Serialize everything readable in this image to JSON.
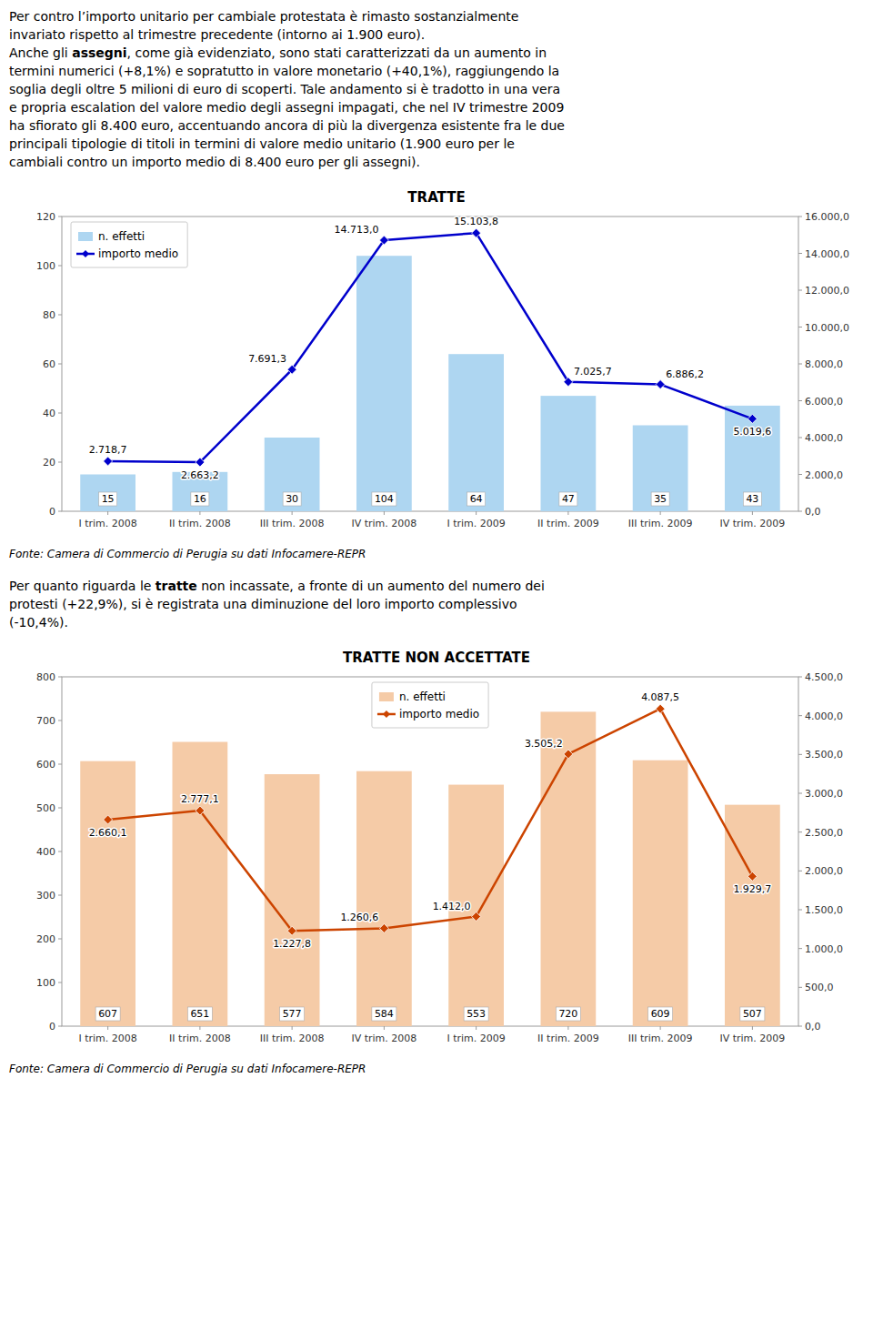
{
  "chart_data": [
    {
      "type": "bar",
      "title": "TRATTE",
      "categories": [
        "I trim. 2008",
        "II trim. 2008",
        "III trim. 2008",
        "IV trim. 2008",
        "I trim. 2009",
        "II trim. 2009",
        "III trim. 2009",
        "IV trim. 2009"
      ],
      "series": [
        {
          "name": "n. effetti",
          "type": "bar",
          "color": "#aed6f1",
          "data_labels": true,
          "values": [
            15,
            16,
            30,
            104,
            64,
            47,
            35,
            43
          ]
        },
        {
          "name": "importo medio",
          "type": "line",
          "axis": "y2",
          "color": "#0000cc",
          "marker": "diamond",
          "data_labels": true,
          "values": [
            2718.7,
            2663.2,
            7691.3,
            14713.0,
            15103.8,
            7025.7,
            6886.2,
            5019.6
          ],
          "value_labels": [
            "2.718,7",
            "2.663,2",
            "7.691,3",
            "14.713,0",
            "15.103,8",
            "7.025,7",
            "6.886,2",
            "5.019,6"
          ]
        }
      ],
      "ylim": [
        0,
        120
      ],
      "yticks": [
        0,
        20,
        40,
        60,
        80,
        100,
        120
      ],
      "y2lim": [
        0,
        16000
      ],
      "y2ticks": [
        {
          "value": 0,
          "label": "0,0"
        },
        {
          "value": 2000,
          "label": "2.000,0"
        },
        {
          "value": 4000,
          "label": "4.000,0"
        },
        {
          "value": 6000,
          "label": "6.000,0"
        },
        {
          "value": 8000,
          "label": "8.000,0"
        },
        {
          "value": 10000,
          "label": "10.000,0"
        },
        {
          "value": 12000,
          "label": "12.000,0"
        },
        {
          "value": 14000,
          "label": "14.000,0"
        },
        {
          "value": 16000,
          "label": "16.000,0"
        }
      ],
      "grid": false,
      "legend": "upper left",
      "source": "Fonte: Camera di Commercio di Perugia su dati Infocamere-REPR"
    },
    {
      "type": "bar",
      "title": "TRATTE NON ACCETTATE",
      "categories": [
        "I trim. 2008",
        "II trim. 2008",
        "III trim. 2008",
        "IV trim. 2008",
        "I trim. 2009",
        "II trim. 2009",
        "III trim. 2009",
        "IV trim. 2009"
      ],
      "series": [
        {
          "name": "n. effetti",
          "type": "bar",
          "color": "#f5cba7",
          "data_labels": true,
          "values": [
            607,
            651,
            577,
            584,
            553,
            720,
            609,
            507
          ]
        },
        {
          "name": "importo medio",
          "type": "line",
          "axis": "y2",
          "color": "#cc4400",
          "marker": "diamond",
          "data_labels": true,
          "values": [
            2660.1,
            2777.1,
            1227.8,
            1260.6,
            1412.0,
            3505.2,
            4087.5,
            1929.7
          ],
          "value_labels": [
            "2.660,1",
            "2.777,1",
            "1.227,8",
            "1.260,6",
            "1.412,0",
            "3.505,2",
            "4.087,5",
            "1.929,7"
          ]
        }
      ],
      "ylim": [
        0,
        800
      ],
      "yticks": [
        0,
        100,
        200,
        300,
        400,
        500,
        600,
        700,
        800
      ],
      "y2lim": [
        0,
        4500
      ],
      "y2ticks": [
        {
          "value": 0,
          "label": "0,0"
        },
        {
          "value": 500,
          "label": "500,0"
        },
        {
          "value": 1000,
          "label": "1.000,0"
        },
        {
          "value": 1500,
          "label": "1.500,0"
        },
        {
          "value": 2000,
          "label": "2.000,0"
        },
        {
          "value": 2500,
          "label": "2.500,0"
        },
        {
          "value": 3000,
          "label": "3.000,0"
        },
        {
          "value": 3500,
          "label": "3.500,0"
        },
        {
          "value": 4000,
          "label": "4.000,0"
        },
        {
          "value": 4500,
          "label": "4.500,0"
        }
      ],
      "grid": false,
      "legend": "upper center",
      "source": "Fonte: Camera di Commercio di Perugia su dati Infocamere-REPR"
    }
  ],
  "text_blocks": [
    [
      [
        {
          "text": "Per contro l’importo unitario per cambiale protestata è rimasto sostanzialmente"
        }
      ],
      [
        {
          "text": "invariato rispetto al trimestre precedente (intorno ai 1.900 euro)."
        }
      ],
      [
        {
          "text": "Anche gli "
        },
        {
          "text": "assegni",
          "bold": true
        },
        {
          "text": ", come già evidenziato, sono stati caratterizzati da un aumento in"
        }
      ],
      [
        {
          "text": "termini numerici (+8,1%) e sopratutto in valore monetario (+40,1%), raggiungendo la"
        }
      ],
      [
        {
          "text": "soglia degli oltre 5 milioni di euro di scoperti. Tale andamento si è tradotto in una vera"
        }
      ],
      [
        {
          "text": "e propria escalation del valore medio degli assegni impagati, che nel IV trimestre 2009"
        }
      ],
      [
        {
          "text": "ha sfiorato gli 8.400 euro, accentuando ancora di più la divergenza esistente fra le due"
        }
      ],
      [
        {
          "text": "principali tipologie di titoli in termini di valore medio unitario (1.900 euro per le"
        }
      ],
      [
        {
          "text": "cambiali contro un importo medio di 8.400 euro per gli assegni)."
        }
      ]
    ],
    [
      [
        {
          "text": "Per quanto riguarda le "
        },
        {
          "text": "tratte",
          "bold": true
        },
        {
          "text": " non incassate, a fronte di un aumento del numero dei"
        }
      ],
      [
        {
          "text": "protesti (+22,9%), si è registrata una diminuzione del loro importo complessivo"
        }
      ],
      [
        {
          "text": "(-10,4%)."
        }
      ]
    ]
  ]
}
